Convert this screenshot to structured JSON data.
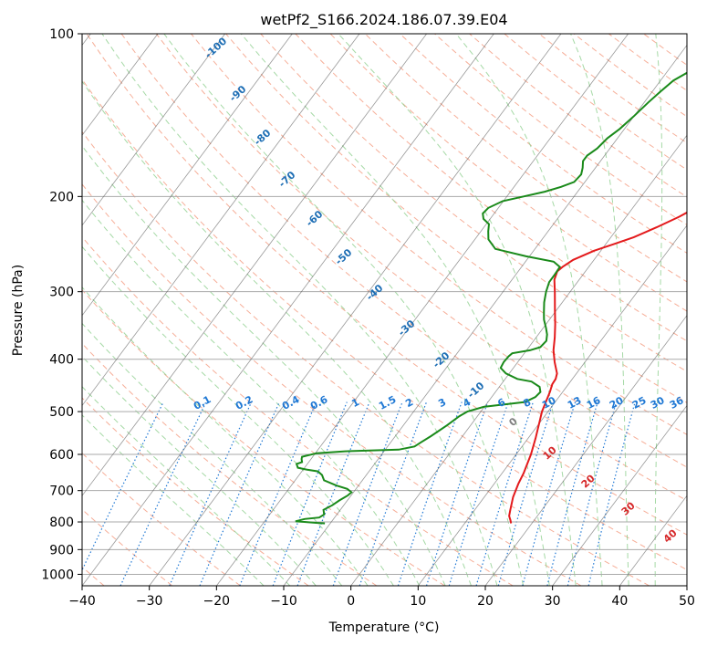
{
  "chart_data": {
    "type": "line",
    "title": "wetPf2_S166.2024.186.07.39.E04",
    "xlabel": "Temperature (°C)",
    "ylabel": "Pressure (hPa)",
    "xlim": [
      -40,
      50
    ],
    "ylim": [
      1050,
      100
    ],
    "y_scale": "log",
    "x_ticks": [
      "−40",
      "−30",
      "−20",
      "−10",
      "0",
      "10",
      "20",
      "30",
      "40",
      "50"
    ],
    "y_ticks": [
      "1000",
      "900",
      "800",
      "700",
      "600",
      "500",
      "400",
      "300",
      "200",
      "100"
    ],
    "grid": true,
    "series": [
      {
        "color": "#e31a1c",
        "points": [
          [
            16.9,
            805
          ],
          [
            16.5,
            795
          ],
          [
            15.8,
            780
          ],
          [
            15.3,
            760
          ],
          [
            14.3,
            720
          ],
          [
            13.6,
            680
          ],
          [
            13.2,
            650
          ],
          [
            12.2,
            600
          ],
          [
            11.1,
            560
          ],
          [
            9.8,
            520
          ],
          [
            9.1,
            500
          ],
          [
            8.6,
            480
          ],
          [
            8.1,
            460
          ],
          [
            7.6,
            445
          ],
          [
            7.5,
            435
          ],
          [
            7.1,
            425
          ],
          [
            5.5,
            405
          ],
          [
            4.0,
            385
          ],
          [
            2.8,
            365
          ],
          [
            1.4,
            345
          ],
          [
            -0.2,
            325
          ],
          [
            -2.3,
            300
          ],
          [
            -3.7,
            285
          ],
          [
            -4.2,
            275
          ],
          [
            -3.9,
            270
          ],
          [
            -3.1,
            262
          ],
          [
            -1.0,
            252
          ],
          [
            1.2,
            245
          ],
          [
            3.4,
            238
          ],
          [
            5.7,
            228
          ],
          [
            7.9,
            218
          ],
          [
            9.7,
            208
          ],
          [
            10.8,
            200
          ],
          [
            11.5,
            193
          ],
          [
            12.4,
            183
          ],
          [
            12.9,
            175
          ],
          [
            13.4,
            168
          ],
          [
            14.2,
            162
          ],
          [
            15.0,
            157
          ],
          [
            15.9,
            150
          ],
          [
            16.4,
            142
          ],
          [
            16.7,
            134
          ],
          [
            17.3,
            128
          ],
          [
            17.9,
            124
          ],
          [
            18.2,
            120
          ],
          [
            18.5,
            116
          ],
          [
            18.6,
            112
          ],
          [
            19.2,
            108
          ],
          [
            20.2,
            104
          ],
          [
            21.3,
            101
          ],
          [
            22.0,
            100
          ]
        ]
      },
      {
        "color": "#1a8a1a",
        "points": [
          [
            -10.8,
            805
          ],
          [
            -12.2,
            803
          ],
          [
            -14.0,
            800
          ],
          [
            -15.4,
            798
          ],
          [
            -14.3,
            790
          ],
          [
            -12.3,
            785
          ],
          [
            -11.9,
            775
          ],
          [
            -12.5,
            760
          ],
          [
            -11.7,
            745
          ],
          [
            -11.2,
            730
          ],
          [
            -10.5,
            715
          ],
          [
            -10.3,
            705
          ],
          [
            -11.3,
            695
          ],
          [
            -13.3,
            685
          ],
          [
            -15.7,
            670
          ],
          [
            -16.6,
            655
          ],
          [
            -17.6,
            645
          ],
          [
            -19.5,
            640
          ],
          [
            -21.0,
            635
          ],
          [
            -21.6,
            625
          ],
          [
            -21.0,
            620
          ],
          [
            -21.4,
            612
          ],
          [
            -21.6,
            606
          ],
          [
            -19.8,
            597
          ],
          [
            -15.8,
            592
          ],
          [
            -8.0,
            588
          ],
          [
            -6.0,
            580
          ],
          [
            -5.5,
            570
          ],
          [
            -4.7,
            555
          ],
          [
            -3.5,
            530
          ],
          [
            -2.7,
            510
          ],
          [
            -2.0,
            500
          ],
          [
            -0.1,
            490
          ],
          [
            5.5,
            480
          ],
          [
            6.5,
            470
          ],
          [
            6.7,
            460
          ],
          [
            6.0,
            450
          ],
          [
            4.2,
            440
          ],
          [
            1.8,
            435
          ],
          [
            -0.5,
            425
          ],
          [
            -1.9,
            415
          ],
          [
            -2.1,
            405
          ],
          [
            -2.0,
            395
          ],
          [
            -1.8,
            390
          ],
          [
            0.5,
            385
          ],
          [
            1.7,
            380
          ],
          [
            1.9,
            370
          ],
          [
            1.3,
            360
          ],
          [
            0.4,
            350
          ],
          [
            -0.8,
            338
          ],
          [
            -1.6,
            328
          ],
          [
            -2.7,
            314
          ],
          [
            -3.6,
            300
          ],
          [
            -4.2,
            288
          ],
          [
            -4.2,
            280
          ],
          [
            -4.3,
            270
          ],
          [
            -5.8,
            264
          ],
          [
            -10.5,
            258
          ],
          [
            -15.9,
            250
          ],
          [
            -18.0,
            240
          ],
          [
            -18.9,
            232
          ],
          [
            -19.6,
            225
          ],
          [
            -21.0,
            220
          ],
          [
            -21.7,
            215
          ],
          [
            -21.5,
            210
          ],
          [
            -20.1,
            204
          ],
          [
            -17.5,
            200
          ],
          [
            -14.9,
            196
          ],
          [
            -13.0,
            192
          ],
          [
            -11.6,
            188
          ],
          [
            -11.4,
            182
          ],
          [
            -11.9,
            177
          ],
          [
            -12.6,
            172
          ],
          [
            -12.6,
            168
          ],
          [
            -11.9,
            163
          ],
          [
            -11.5,
            156
          ],
          [
            -10.7,
            150
          ],
          [
            -10.0,
            142
          ],
          [
            -9.4,
            134
          ],
          [
            -8.8,
            128
          ],
          [
            -8.1,
            122
          ],
          [
            -6.6,
            117
          ],
          [
            -5.4,
            112
          ],
          [
            -4.3,
            106
          ],
          [
            -3.2,
            101
          ],
          [
            -3.0,
            100
          ]
        ]
      }
    ],
    "dry_adiabat_labels": [
      "-100",
      "-90",
      "-80",
      "-70",
      "-60",
      "-50",
      "-40",
      "-30",
      "-20",
      "-10",
      "0",
      "10",
      "20",
      "30",
      "40"
    ],
    "moist_adiabat_labels": [
      "0"
    ],
    "mixing_ratio_labels": [
      "0.1",
      "0.2",
      "0.4",
      "0.6",
      "1",
      "1.5",
      "2",
      "3",
      "4",
      "6",
      "8",
      "10",
      "13",
      "16",
      "20",
      "25",
      "30",
      "36"
    ],
    "colors": {
      "isotherm": "#555555",
      "isobar": "#aaaaaa",
      "dry_adiabat": "#f28b6c",
      "moist_adiabat": "#8fcf8f",
      "mixing_ratio": "#1f78d4",
      "dry_label": "#1f6fb5",
      "moist_label": "#808080",
      "warm_label": "#d62728",
      "dashed_tan": "#d2b48c"
    }
  }
}
